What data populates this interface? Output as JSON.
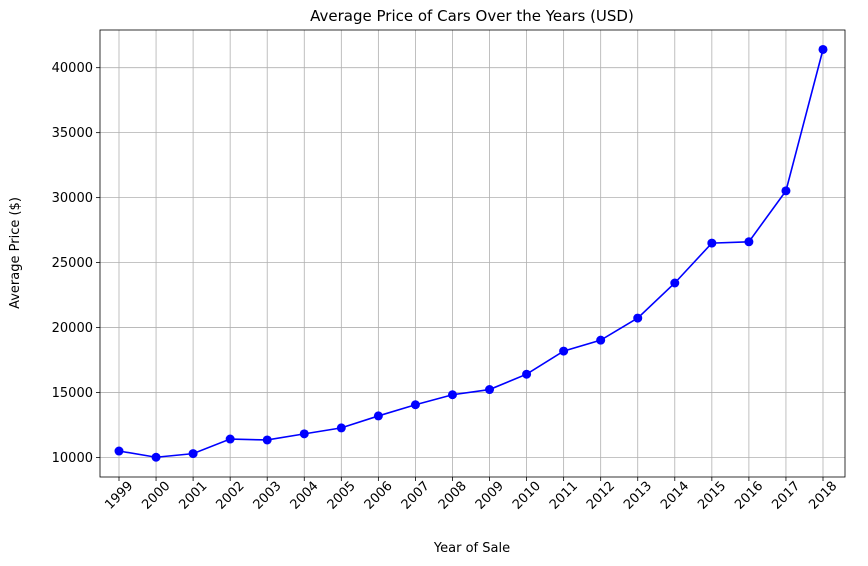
{
  "chart_data": {
    "type": "line",
    "title": "Average Price of Cars Over the Years (USD)",
    "xlabel": "Year of Sale",
    "ylabel": "Average Price ($)",
    "categories": [
      "1999",
      "2000",
      "2001",
      "2002",
      "2003",
      "2004",
      "2005",
      "2006",
      "2007",
      "2008",
      "2009",
      "2010",
      "2011",
      "2012",
      "2013",
      "2014",
      "2015",
      "2016",
      "2017",
      "2018"
    ],
    "series": [
      {
        "values": [
          10500,
          10020,
          10300,
          11420,
          11350,
          11820,
          12280,
          13200,
          14060,
          14830,
          15230,
          16410,
          18190,
          19030,
          20730,
          23430,
          26500,
          26600,
          30520,
          41400
        ]
      }
    ],
    "ylim": [
      8500,
      42900
    ],
    "yticks": [
      10000,
      15000,
      20000,
      25000,
      30000,
      35000,
      40000
    ],
    "grid": true,
    "line_color": "#0000ff",
    "marker": "circle"
  }
}
